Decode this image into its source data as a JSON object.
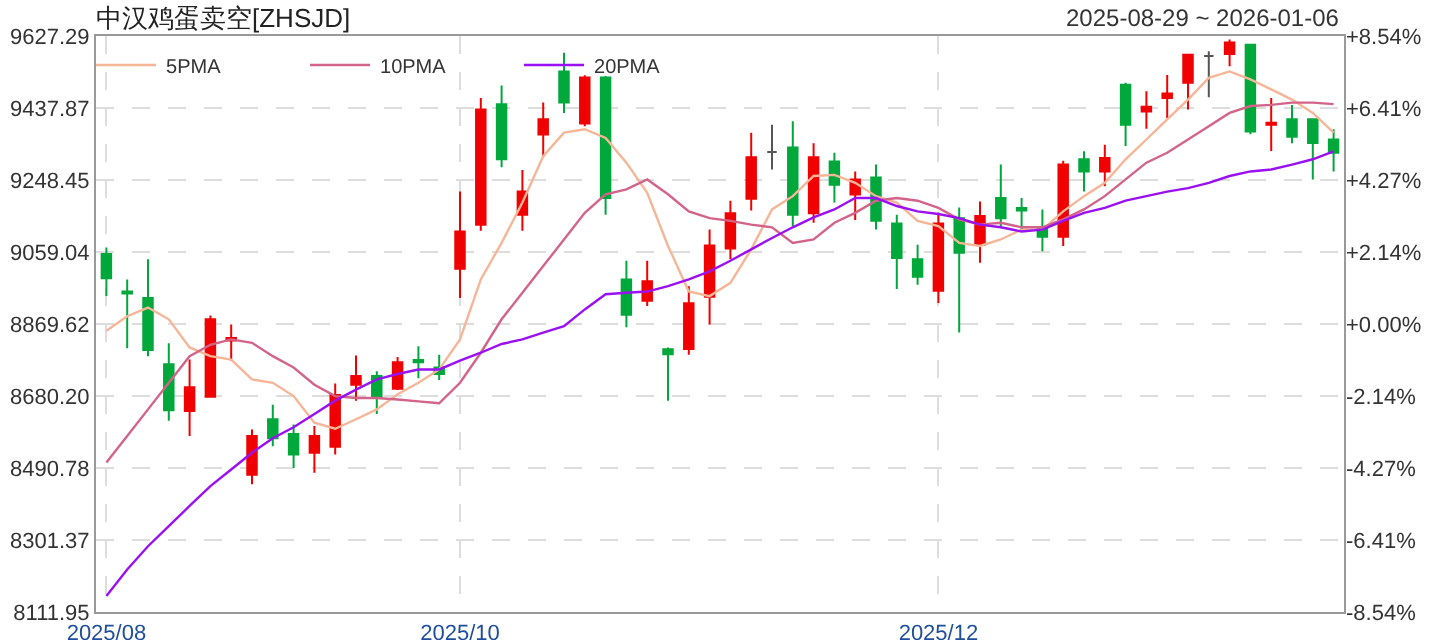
{
  "chart_data": {
    "type": "candlestick",
    "title": "中汉鸡蛋卖空[ZHSJD]",
    "subtitle": "2025-08-29 ~ 2026-01-06",
    "categories": [
      "2025/08",
      null,
      null,
      null,
      null,
      null,
      null,
      null,
      null,
      null,
      null,
      null,
      null,
      null,
      null,
      null,
      null,
      "2025/10",
      null,
      null,
      null,
      null,
      null,
      null,
      null,
      null,
      null,
      null,
      null,
      null,
      null,
      null,
      null,
      null,
      null,
      null,
      null,
      null,
      null,
      null,
      "2025/12",
      null,
      null,
      null,
      null,
      null,
      null,
      null,
      null,
      null,
      null,
      null,
      null,
      null,
      null,
      null,
      null,
      null,
      null,
      null
    ],
    "ohlc": [
      [
        9054,
        9071,
        8943,
        8990
      ],
      [
        8955,
        8987,
        8806,
        8950
      ],
      [
        8938,
        9040,
        8785,
        8801
      ],
      [
        8764,
        8819,
        8615,
        8643
      ],
      [
        8641,
        8776,
        8575,
        8703
      ],
      [
        8678,
        8892,
        8678,
        8882
      ],
      [
        8826,
        8868,
        8773,
        8833
      ],
      [
        8473,
        8592,
        8448,
        8575
      ],
      [
        8619,
        8657,
        8548,
        8569
      ],
      [
        8580,
        8605,
        8491,
        8526
      ],
      [
        8531,
        8601,
        8478,
        8575
      ],
      [
        8547,
        8713,
        8526,
        8683
      ],
      [
        8710,
        8787,
        8668,
        8733
      ],
      [
        8733,
        8745,
        8633,
        8675
      ],
      [
        8699,
        8783,
        8696,
        8769
      ],
      [
        8775,
        8811,
        8727,
        8769
      ],
      [
        8755,
        8789,
        8722,
        8738
      ],
      [
        9015,
        9218,
        8938,
        9113
      ],
      [
        9131,
        9464,
        9115,
        9434
      ],
      [
        9448,
        9497,
        9282,
        9303
      ],
      [
        9157,
        9275,
        9115,
        9218
      ],
      [
        9368,
        9452,
        9308,
        9408
      ],
      [
        9534,
        9583,
        9425,
        9452
      ],
      [
        9397,
        9524,
        9390,
        9518
      ],
      [
        9518,
        9522,
        9157,
        9201
      ],
      [
        8987,
        9036,
        8861,
        8894
      ],
      [
        8931,
        9036,
        8917,
        8982
      ],
      [
        8803,
        8808,
        8668,
        8790
      ],
      [
        8804,
        8969,
        8789,
        8924
      ],
      [
        8941,
        9118,
        8868,
        9076
      ],
      [
        9068,
        9194,
        9040,
        9161
      ],
      [
        9199,
        9373,
        9168,
        9308
      ],
      [
        9322,
        9394,
        9276,
        9322
      ],
      [
        9334,
        9403,
        9127,
        9157
      ],
      [
        9161,
        9345,
        9136,
        9308
      ],
      [
        9297,
        9320,
        9189,
        9236
      ],
      [
        9210,
        9271,
        9143,
        9250
      ],
      [
        9255,
        9289,
        9118,
        9141
      ],
      [
        9134,
        9157,
        8962,
        9043
      ],
      [
        9040,
        9078,
        8973,
        8994
      ],
      [
        8957,
        9162,
        8925,
        9134
      ],
      [
        9148,
        9176,
        8847,
        9057
      ],
      [
        9078,
        9192,
        9031,
        9154
      ],
      [
        9201,
        9289,
        9127,
        9148
      ],
      [
        9175,
        9201,
        9118,
        9168
      ],
      [
        9122,
        9171,
        9061,
        9099
      ],
      [
        9099,
        9299,
        9075,
        9289
      ],
      [
        9303,
        9324,
        9218,
        9271
      ],
      [
        9271,
        9341,
        9232,
        9306
      ],
      [
        9499,
        9504,
        9338,
        9394
      ],
      [
        9429,
        9482,
        9383,
        9441
      ],
      [
        9464,
        9525,
        9411,
        9476
      ],
      [
        9504,
        9578,
        9434,
        9578
      ],
      [
        9575,
        9587,
        9466,
        9575
      ],
      [
        9580,
        9618,
        9548,
        9610
      ],
      [
        9604,
        9606,
        9369,
        9376
      ],
      [
        9394,
        9464,
        9325,
        9399
      ],
      [
        9408,
        9446,
        9345,
        9362
      ],
      [
        9408,
        9411,
        9250,
        9346
      ],
      [
        9355,
        9382,
        9271,
        9320
      ]
    ],
    "colors": [
      "#00a83c",
      "#00a83c",
      "#00a83c",
      "#00a83c",
      "#f00000",
      "#f00000",
      "#f00000",
      "#f00000",
      "#00a83c",
      "#00a83c",
      "#f00000",
      "#f00000",
      "#f00000",
      "#00a83c",
      "#f00000",
      "#00a83c",
      "#00a83c",
      "#f00000",
      "#f00000",
      "#00a83c",
      "#f00000",
      "#f00000",
      "#00a83c",
      "#f00000",
      "#00a83c",
      "#00a83c",
      "#f00000",
      "#00a83c",
      "#f00000",
      "#f00000",
      "#f00000",
      "#f00000",
      "#555555",
      "#00a83c",
      "#f00000",
      "#00a83c",
      "#f00000",
      "#00a83c",
      "#00a83c",
      "#00a83c",
      "#f00000",
      "#00a83c",
      "#f00000",
      "#00a83c",
      "#00a83c",
      "#00a83c",
      "#f00000",
      "#00a83c",
      "#f00000",
      "#00a83c",
      "#f00000",
      "#f00000",
      "#f00000",
      "#555555",
      "#f00000",
      "#00a83c",
      "#f00000",
      "#00a83c",
      "#00a83c",
      "#00a83c"
    ],
    "series": [
      {
        "name": "5PMA",
        "type": "line",
        "color": "#f5b597",
        "values": [
          8852,
          8890,
          8913,
          8882,
          8808,
          8785,
          8776,
          8724,
          8715,
          8680,
          8610,
          8594,
          8619,
          8645,
          8685,
          8715,
          8750,
          8829,
          8987,
          9083,
          9189,
          9311,
          9373,
          9382,
          9359,
          9294,
          9215,
          9075,
          8955,
          8943,
          8978,
          9066,
          9171,
          9206,
          9259,
          9262,
          9241,
          9206,
          9189,
          9141,
          9127,
          9083,
          9075,
          9092,
          9118,
          9118,
          9166,
          9206,
          9241,
          9303,
          9355,
          9408,
          9460,
          9517,
          9534,
          9513,
          9487,
          9460,
          9425,
          9373
        ]
      },
      {
        "name": "10PMA",
        "type": "line",
        "color": "#d2648a",
        "values": [
          8505,
          8575,
          8645,
          8715,
          8785,
          8815,
          8829,
          8820,
          8785,
          8755,
          8710,
          8680,
          8675,
          8675,
          8671,
          8666,
          8661,
          8715,
          8794,
          8882,
          8952,
          9022,
          9092,
          9162,
          9211,
          9224,
          9250,
          9211,
          9166,
          9148,
          9141,
          9131,
          9124,
          9083,
          9092,
          9136,
          9162,
          9194,
          9201,
          9194,
          9175,
          9145,
          9131,
          9136,
          9124,
          9124,
          9145,
          9171,
          9206,
          9250,
          9294,
          9320,
          9355,
          9390,
          9425,
          9443,
          9446,
          9452,
          9452,
          9448
        ]
      },
      {
        "name": "20PMA",
        "type": "line",
        "color": "#9b10f2",
        "values": [
          8154,
          8224,
          8285,
          8338,
          8391,
          8443,
          8487,
          8531,
          8569,
          8598,
          8633,
          8668,
          8697,
          8724,
          8738,
          8750,
          8750,
          8773,
          8794,
          8817,
          8829,
          8847,
          8864,
          8908,
          8948,
          8952,
          8955,
          8969,
          8987,
          9008,
          9036,
          9066,
          9096,
          9124,
          9150,
          9171,
          9201,
          9201,
          9180,
          9166,
          9159,
          9148,
          9131,
          9124,
          9113,
          9118,
          9141,
          9162,
          9175,
          9194,
          9206,
          9218,
          9227,
          9241,
          9259,
          9271,
          9276,
          9289,
          9303,
          9324
        ]
      }
    ],
    "ylim": [
      8111.95,
      9627.29
    ],
    "yticks": [
      8111.95,
      8301.37,
      8490.78,
      {
        "value": 8680.2,
        "label": "8680.20"
      },
      8869.62,
      9059.04,
      9248.45,
      9437.87,
      9627.29
    ],
    "y2lim": [
      -8.54,
      8.54
    ],
    "y2ticks": [
      {
        "value": -8.54,
        "label": "-8.54%"
      },
      {
        "value": -6.41,
        "label": "-6.41%"
      },
      {
        "value": -4.27,
        "label": "-4.27%"
      },
      {
        "value": -2.14,
        "label": "-2.14%"
      },
      {
        "value": 0,
        "label": "+0.00%"
      },
      {
        "value": 2.14,
        "label": "+2.14%"
      },
      {
        "value": 4.27,
        "label": "+4.27%"
      },
      {
        "value": 6.41,
        "label": "+6.41%"
      },
      {
        "value": 8.54,
        "label": "+8.54%"
      }
    ],
    "grid": true,
    "legend": "top left",
    "marker": "none"
  }
}
